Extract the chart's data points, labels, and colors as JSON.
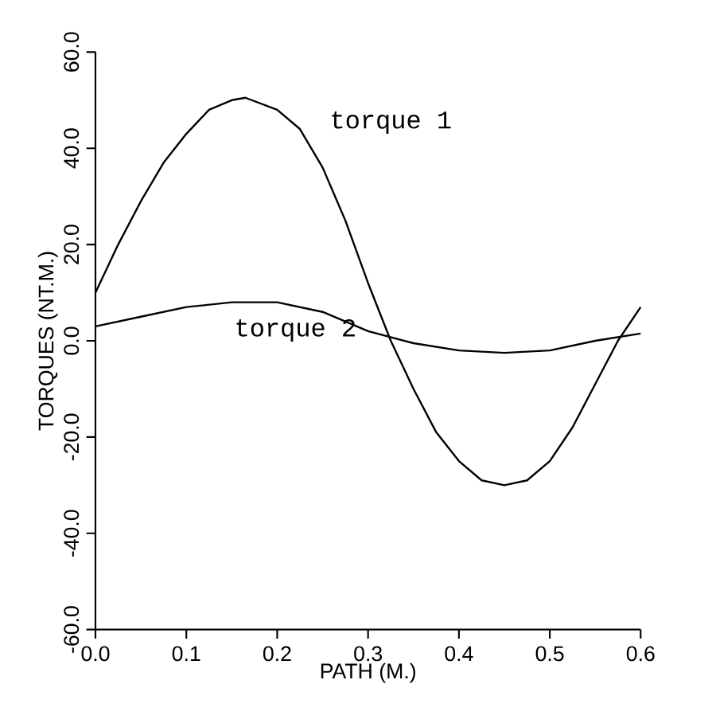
{
  "chart_data": {
    "type": "line",
    "xlabel": "PATH (M.)",
    "ylabel": "TORQUES (NT.M.)",
    "x": [
      0,
      0.025,
      0.05,
      0.075,
      0.1,
      0.125,
      0.15,
      0.165,
      0.2,
      0.225,
      0.25,
      0.275,
      0.3,
      0.325,
      0.35,
      0.375,
      0.4,
      0.425,
      0.45,
      0.475,
      0.5,
      0.525,
      0.55,
      0.575,
      0.6
    ],
    "series": [
      {
        "name": "torque 1",
        "color": "#000000",
        "values": [
          10,
          20,
          29,
          37,
          43,
          48,
          50,
          50.5,
          48,
          44,
          36,
          25,
          12,
          0,
          -10,
          -19,
          -25,
          -29,
          -30,
          -29,
          -25,
          -18,
          -9,
          0,
          7
        ]
      },
      {
        "name": "torque 2",
        "color": "#000000",
        "x": [
          0,
          0.05,
          0.1,
          0.15,
          0.2,
          0.25,
          0.3,
          0.35,
          0.4,
          0.45,
          0.5,
          0.55,
          0.6
        ],
        "values": [
          3,
          5,
          7,
          8,
          8,
          6,
          2,
          -0.5,
          -2,
          -2.5,
          -2,
          0,
          1.5
        ]
      }
    ],
    "xlim": [
      0,
      0.6
    ],
    "ylim": [
      -60,
      60
    ],
    "xticks": [
      {
        "value": 0,
        "label": "0.0"
      },
      {
        "value": 0.1,
        "label": "0.1"
      },
      {
        "value": 0.2,
        "label": "0.2"
      },
      {
        "value": 0.3,
        "label": "0.3"
      },
      {
        "value": 0.4,
        "label": "0.4"
      },
      {
        "value": 0.5,
        "label": "0.5"
      },
      {
        "value": 0.6,
        "label": "0.6"
      }
    ],
    "yticks": [
      {
        "value": -60,
        "label": "-60.0"
      },
      {
        "value": -40,
        "label": "-40.0"
      },
      {
        "value": -20,
        "label": "-20.0"
      },
      {
        "value": 0,
        "label": "0.0"
      },
      {
        "value": 20,
        "label": "20.0"
      },
      {
        "value": 40,
        "label": "40.0"
      },
      {
        "value": 60,
        "label": "60.0"
      }
    ],
    "grid": false,
    "legend": false,
    "marker": "none",
    "line_style": "solid"
  }
}
